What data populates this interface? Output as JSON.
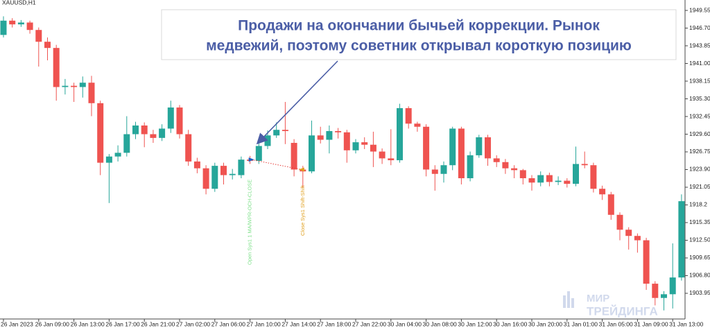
{
  "chart_data": {
    "type": "candlestick",
    "title": "XAUUSD,H1",
    "categories": [
      "26 Jan 2023",
      null,
      null,
      null,
      "26 Jan 09:00",
      null,
      null,
      null,
      "26 Jan 13:00",
      null,
      null,
      null,
      "26 Jan 17:00",
      null,
      null,
      null,
      "26 Jan 21:00",
      null,
      null,
      null,
      "27 Jan 02:00",
      null,
      null,
      null,
      "27 Jan 06:00",
      null,
      null,
      null,
      "27 Jan 10:00",
      null,
      null,
      null,
      "27 Jan 14:00",
      null,
      null,
      null,
      "27 Jan 18:00",
      null,
      null,
      null,
      "27 Jan 22:00",
      null,
      null,
      null,
      "30 Jan 04:00",
      null,
      null,
      null,
      "30 Jan 08:00",
      null,
      null,
      null,
      "30 Jan 12:00",
      null,
      null,
      null,
      "30 Jan 16:00",
      null,
      null,
      null,
      "30 Jan 20:00",
      null,
      null,
      null,
      "31 Jan 01:00",
      null,
      null,
      null,
      "31 Jan 05:00",
      null,
      null,
      null,
      "31 Jan 09:00",
      null,
      null,
      null,
      "31 Jan 13:00",
      null
    ],
    "series": [
      {
        "open": [
          1945.6,
          1947.9,
          1947.3,
          1947.6,
          1946.4,
          1944.5,
          1943.5,
          1937.2,
          1937.4,
          1937.2,
          1937.9,
          1934.6,
          1925.0,
          1926.0,
          1926.6,
          1929.6,
          1931.0,
          1929.6,
          1929.0,
          1930.5,
          1933.9,
          1929.6,
          1925.2,
          1924.1,
          1920.8,
          1924.5,
          1923.0,
          1923.0,
          1925.5,
          1925.3,
          1927.7,
          1929.4,
          1930.3,
          1928.2,
          1923.9,
          1923.6,
          1929.4,
          1928.7,
          1930.1,
          1929.9,
          1927.0,
          1928.3,
          1927.9,
          1926.8,
          1925.7,
          1925.4,
          1933.8,
          1931.3,
          1930.8,
          1923.9,
          1923.2,
          1924.6,
          1930.5,
          1922.5,
          1926.2,
          1929.1,
          1925.7,
          1925.1,
          1924.1,
          1923.8,
          1922.5,
          1921.8,
          1923.0,
          1921.9,
          1922.1,
          1921.6,
          1924.8,
          1924.6,
          1920.8,
          1919.9,
          1916.6,
          1914.2,
          1913.2,
          1912.5,
          1905.5,
          1903.2,
          1903.8,
          1906.5
        ],
        "high": [
          1948.6,
          1948.3,
          1948.0,
          1947.9,
          1946.8,
          1945.2,
          1944.0,
          1938.5,
          1937.9,
          1938.9,
          1939.0,
          1935.0,
          1926.4,
          1927.8,
          1932.5,
          1931.6,
          1931.5,
          1930.3,
          1931.2,
          1935.0,
          1934.3,
          1930.3,
          1925.8,
          1924.6,
          1925.0,
          1925.0,
          1924.0,
          1926.0,
          1926.1,
          1928.9,
          1930.2,
          1931.5,
          1934.8,
          1928.8,
          1924.5,
          1931.8,
          1930.8,
          1931.0,
          1930.6,
          1930.3,
          1928.8,
          1929.1,
          1930.0,
          1927.3,
          1930.4,
          1934.5,
          1934.1,
          1931.6,
          1931.2,
          1924.6,
          1925.2,
          1930.8,
          1930.8,
          1926.8,
          1929.5,
          1929.5,
          1926.2,
          1925.6,
          1924.6,
          1924.0,
          1923.0,
          1923.6,
          1923.4,
          1922.8,
          1922.5,
          1927.6,
          1926.8,
          1925.0,
          1921.3,
          1920.3,
          1917.0,
          1914.6,
          1913.6,
          1912.9,
          1905.9,
          1904.3,
          1912.0,
          1919.9
        ],
        "low": [
          1945.2,
          1946.8,
          1946.9,
          1945.8,
          1940.5,
          1941.5,
          1935.0,
          1936.0,
          1934.8,
          1935.5,
          1932.5,
          1923.0,
          1918.5,
          1925.2,
          1926.0,
          1928.8,
          1927.5,
          1928.2,
          1928.5,
          1929.8,
          1928.9,
          1924.5,
          1923.3,
          1919.9,
          1920.3,
          1921.5,
          1922.3,
          1922.5,
          1924.8,
          1924.8,
          1927.2,
          1929.0,
          1928.0,
          1922.8,
          1921.0,
          1923.3,
          1928.1,
          1926.5,
          1928.9,
          1925.0,
          1926.5,
          1927.2,
          1924.3,
          1924.8,
          1924.6,
          1925.0,
          1930.5,
          1930.0,
          1922.8,
          1920.5,
          1921.8,
          1923.8,
          1921.5,
          1922.0,
          1925.8,
          1924.5,
          1924.3,
          1923.2,
          1922.5,
          1921.5,
          1920.5,
          1921.2,
          1921.2,
          1921.4,
          1921.0,
          1921.2,
          1924.1,
          1920.2,
          1919.0,
          1915.8,
          1912.5,
          1911.0,
          1910.5,
          1904.5,
          1902.0,
          1901.2,
          1901.5,
          1906.0
        ],
        "close": [
          1947.9,
          1947.3,
          1947.6,
          1946.4,
          1944.5,
          1943.5,
          1937.2,
          1937.4,
          1937.2,
          1937.9,
          1934.6,
          1925.0,
          1926.0,
          1926.6,
          1929.6,
          1931.0,
          1929.6,
          1929.0,
          1930.5,
          1933.9,
          1929.6,
          1925.2,
          1924.1,
          1920.8,
          1924.5,
          1923.0,
          1923.2,
          1925.5,
          1925.3,
          1927.7,
          1929.4,
          1930.3,
          1930.1,
          1923.9,
          1923.6,
          1929.4,
          1928.7,
          1930.1,
          1929.9,
          1927.0,
          1928.3,
          1927.9,
          1926.8,
          1925.7,
          1925.4,
          1933.8,
          1931.3,
          1930.8,
          1923.9,
          1923.2,
          1924.6,
          1930.5,
          1922.5,
          1926.2,
          1929.1,
          1925.7,
          1925.1,
          1924.1,
          1923.8,
          1922.5,
          1921.8,
          1923.0,
          1921.9,
          1922.1,
          1921.6,
          1924.8,
          1924.6,
          1920.8,
          1919.9,
          1916.6,
          1914.2,
          1913.2,
          1912.5,
          1905.5,
          1903.2,
          1903.8,
          1906.5,
          1918.8
        ]
      }
    ],
    "up_color": "#26a69a",
    "down_color": "#ef5350",
    "ylim": [
      1899.81,
      1951.23
    ],
    "yticks": [
      1949.55,
      {
        "value": 1946.7,
        "label": "1946.70"
      },
      1943.85,
      {
        "value": 1941,
        "label": "1941.00"
      },
      1938.15,
      {
        "value": 1935.3,
        "label": "1935.30"
      },
      1932.45,
      {
        "value": 1929.6,
        "label": "1929.60"
      },
      1926.75,
      {
        "value": 1923.9,
        "label": "1923.90"
      },
      1921.05,
      1918.2,
      1915.35,
      {
        "value": 1912.5,
        "label": "1912.50"
      },
      {
        "value": 1909.65,
        "label": "1909.65"
      },
      {
        "value": 1906.8,
        "label": "1906.80"
      },
      1903.95
    ],
    "annotation": [
      "Продажи на окончании бычьей коррекции. Рынок",
      "медвежий, поэтому советник открывал короткую позицию"
    ],
    "trade": {
      "open_label": "Open Sys1 1 MA/WPR-OCH-CLOSE",
      "close_label": "Close Sys1 Shift-Shift",
      "open_price": 1925.5,
      "close_price": 1923.9
    },
    "watermark": [
      "МИР",
      "ТРЕЙДИНГА"
    ]
  }
}
